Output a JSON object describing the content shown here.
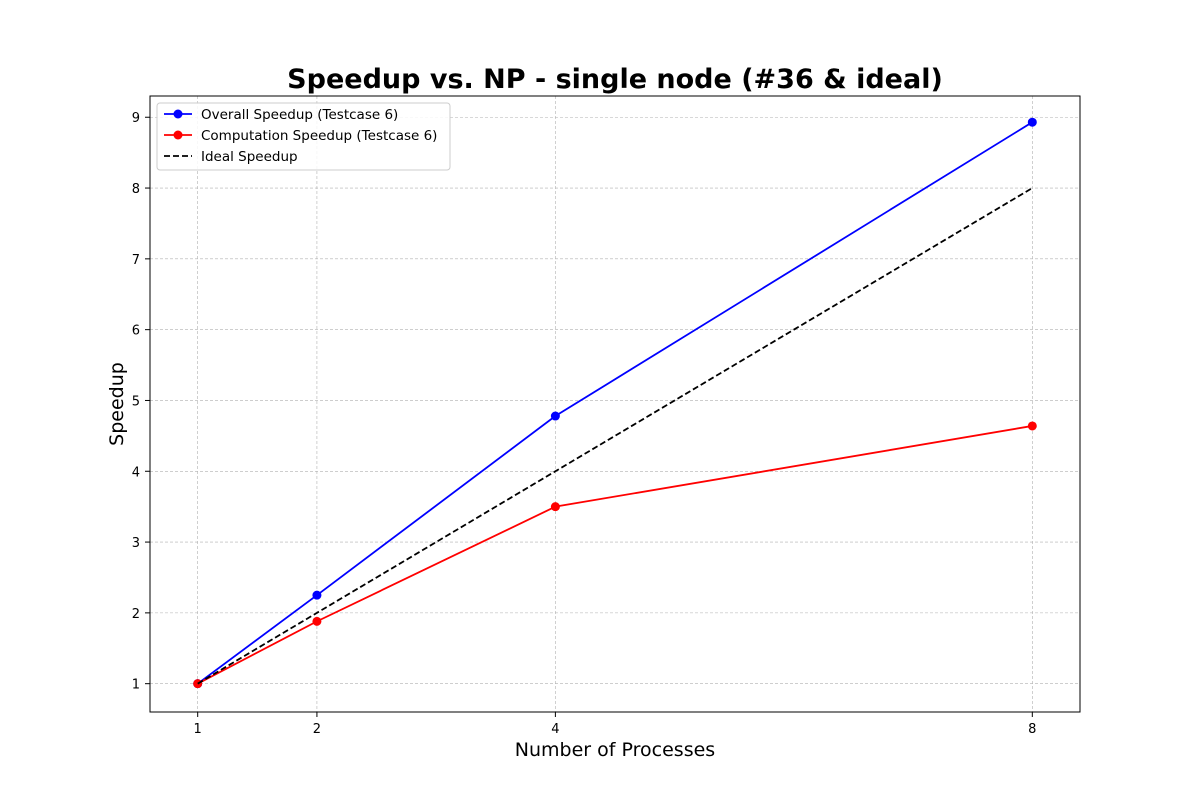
{
  "chart_data": {
    "type": "line",
    "title": "Speedup vs. NP - single node (#36 & ideal)",
    "xlabel": "Number of Processes",
    "ylabel": "Speedup",
    "x": [
      1,
      2,
      4,
      8
    ],
    "x_ticks": [
      "1",
      "2",
      "4",
      "8"
    ],
    "y_ticks": [
      "1",
      "2",
      "3",
      "4",
      "5",
      "6",
      "7",
      "8",
      "9"
    ],
    "xlim": [
      0.6,
      8.4
    ],
    "ylim": [
      0.6,
      9.3
    ],
    "grid": true,
    "legend_position": "top-left",
    "series": [
      {
        "name": "Overall Speedup (Testcase 6)",
        "values": [
          1.0,
          2.25,
          4.78,
          8.93
        ],
        "color": "#0000ff",
        "style": "solid",
        "marker": "circle"
      },
      {
        "name": "Computation Speedup (Testcase 6)",
        "values": [
          1.0,
          1.88,
          3.5,
          4.64
        ],
        "color": "#ff0000",
        "style": "solid",
        "marker": "circle"
      },
      {
        "name": "Ideal Speedup",
        "values": [
          1,
          2,
          4,
          8
        ],
        "color": "#000000",
        "style": "dashed",
        "marker": "none"
      }
    ]
  }
}
